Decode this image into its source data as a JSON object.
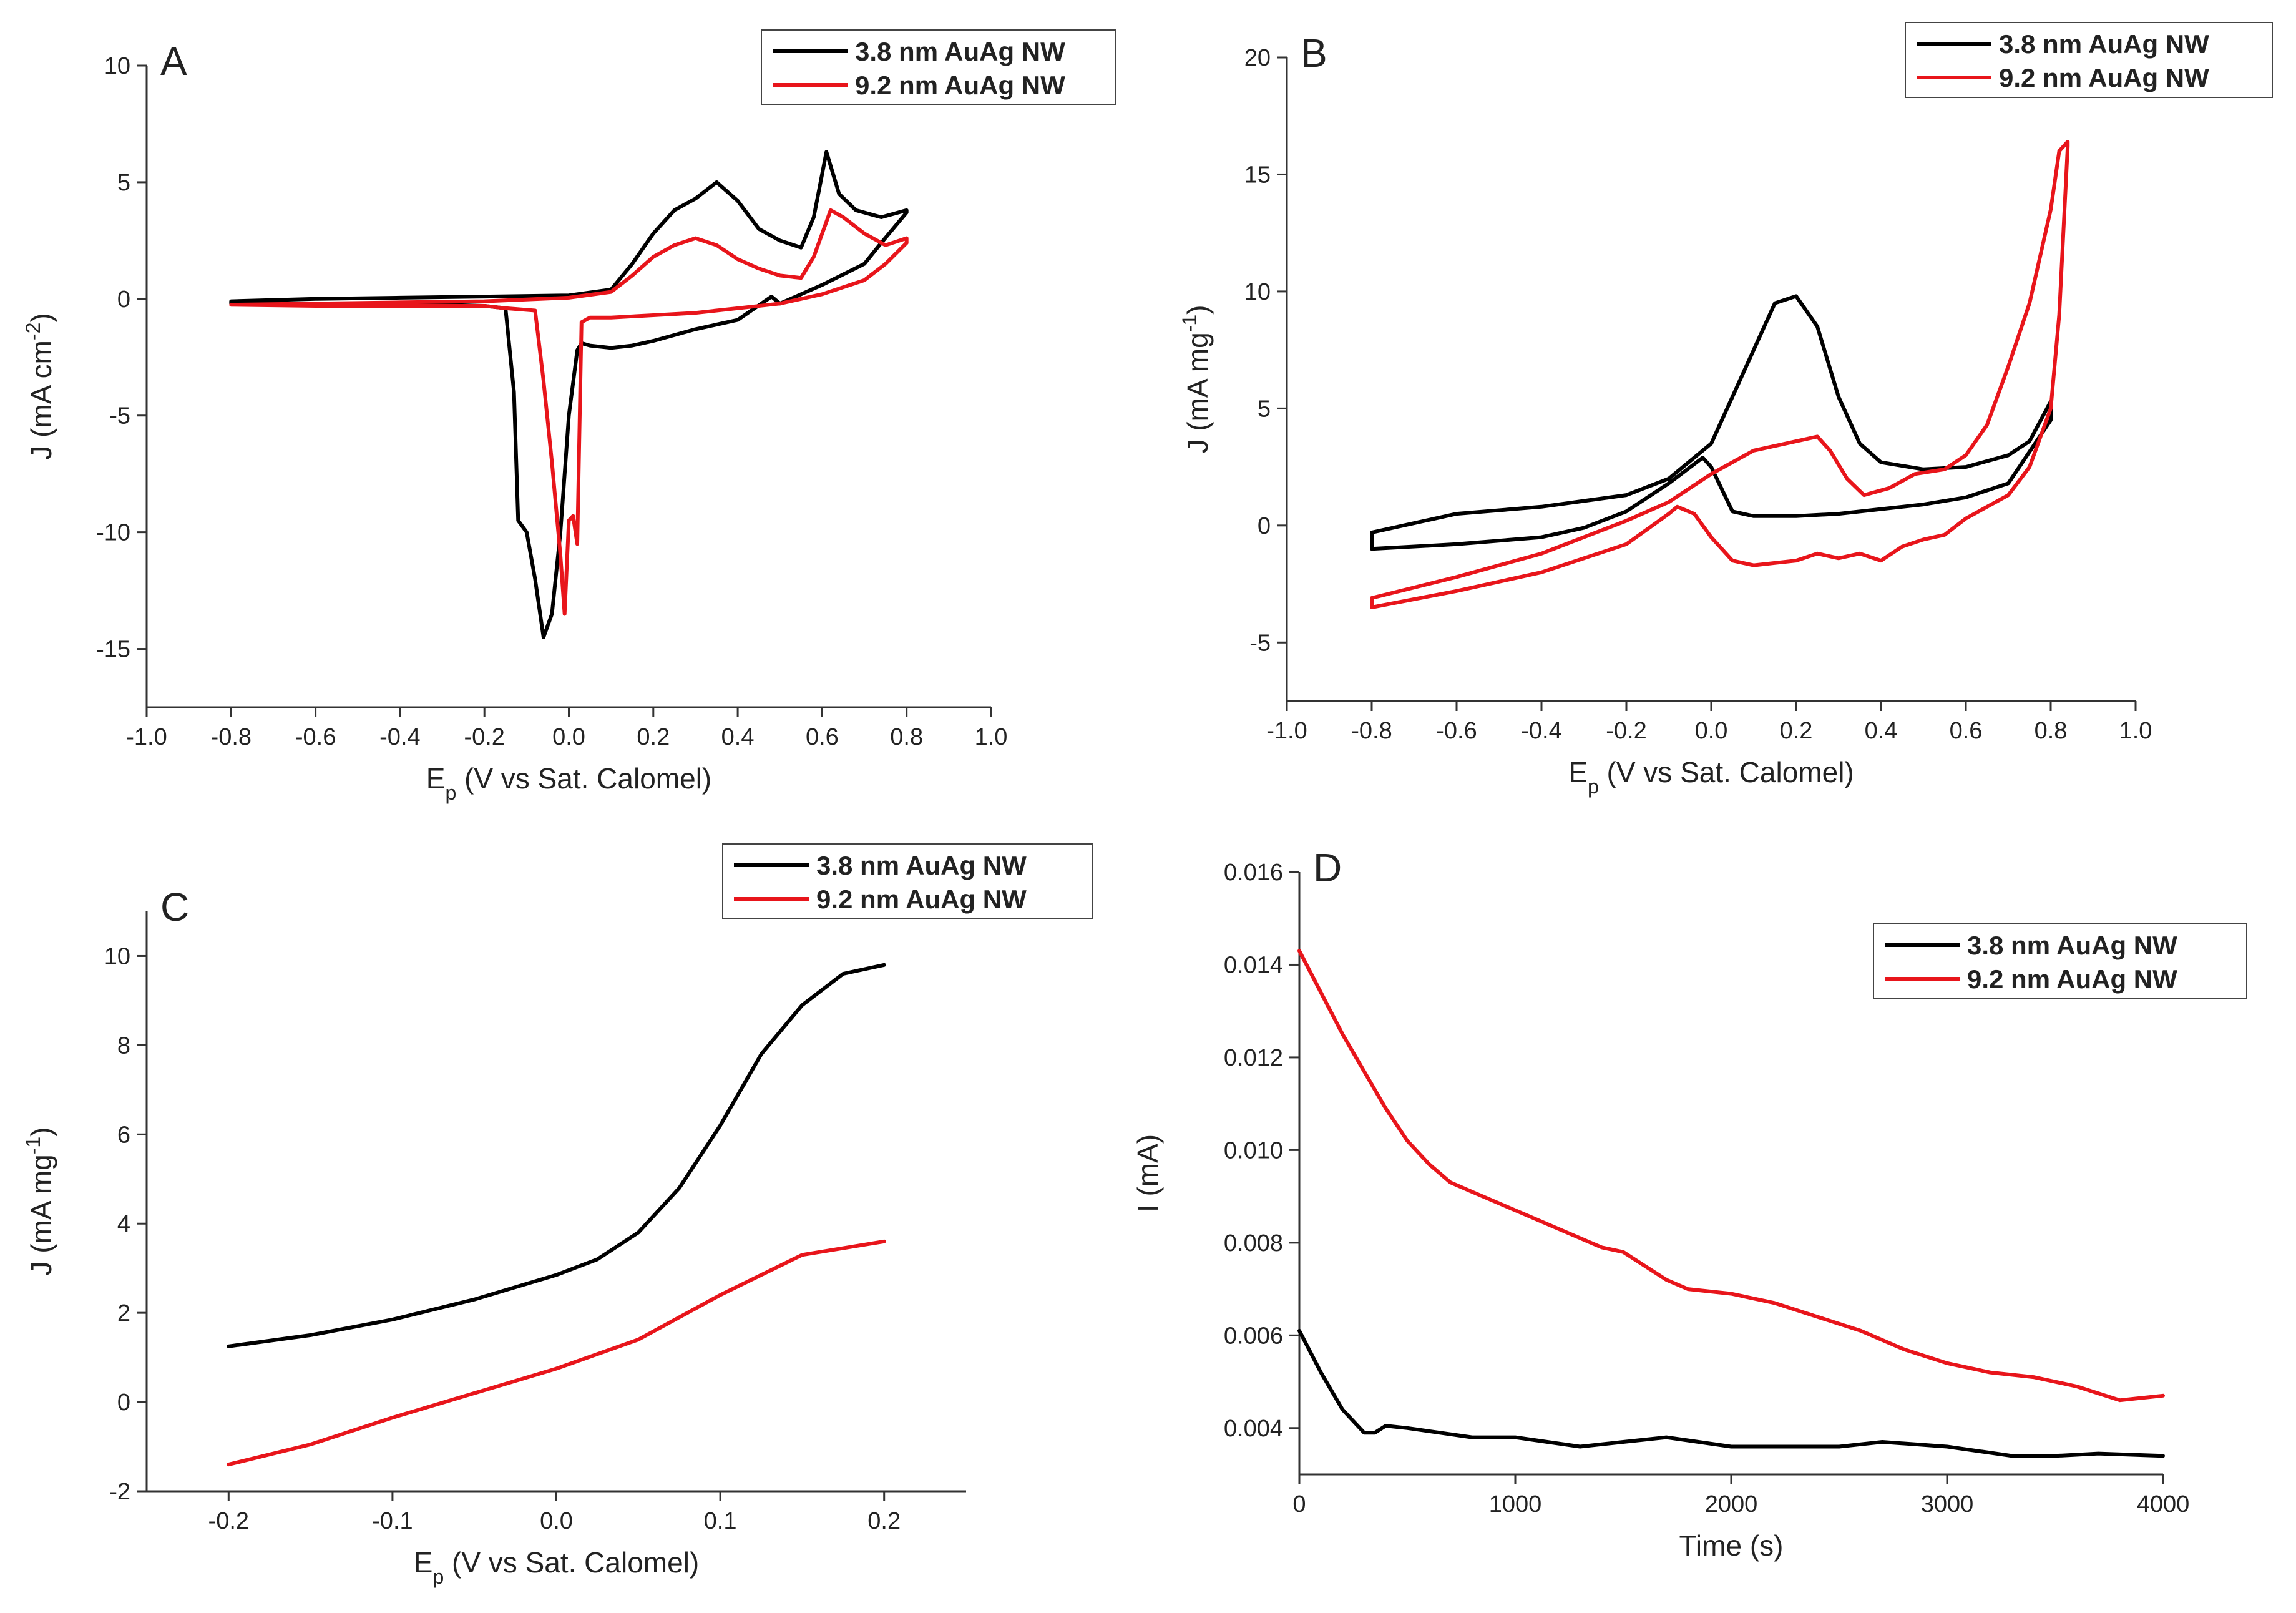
{
  "colors": {
    "series_a": "#000000",
    "series_b": "#e8151b",
    "axis": "#333333",
    "legend_border": "#444444"
  },
  "chart_data": [
    {
      "panel": "A",
      "type": "line",
      "xlabel": {
        "main": "E",
        "sub": "p",
        "rest": " (V vs Sat. Calomel)"
      },
      "ylabel": {
        "main": "J (mA cm",
        "sup": "-2",
        "rest": ")"
      },
      "xlim": [
        -1.0,
        1.0
      ],
      "ylim": [
        -17.5,
        10
      ],
      "xticks": [
        -1.0,
        -0.8,
        -0.6,
        -0.4,
        -0.2,
        0.0,
        0.2,
        0.4,
        0.6,
        0.8,
        1.0
      ],
      "xtick_labels": [
        "-1.0",
        "-0.8",
        "-0.6",
        "-0.4",
        "-0.2",
        "0.0",
        "0.2",
        "0.4",
        "0.6",
        "0.8",
        "1.0"
      ],
      "yticks": [
        -15,
        -10,
        -5,
        0,
        5,
        10
      ],
      "ytick_labels": [
        "-15",
        "-10",
        "-5",
        "0",
        "5",
        "10"
      ],
      "legend": [
        "3.8 nm AuAg NW",
        "9.2 nm AuAg NW"
      ],
      "legend_position": "top-right",
      "series": [
        {
          "name": "3.8 nm AuAg NW",
          "x": [
            -0.8,
            -0.6,
            -0.4,
            -0.2,
            0.0,
            0.1,
            0.15,
            0.2,
            0.25,
            0.3,
            0.35,
            0.4,
            0.45,
            0.5,
            0.55,
            0.58,
            0.61,
            0.64,
            0.68,
            0.74,
            0.8,
            0.8,
            0.74,
            0.7,
            0.6,
            0.5,
            0.48,
            0.4,
            0.3,
            0.2,
            0.15,
            0.1,
            0.05,
            0.03,
            0.02,
            0.0,
            -0.02,
            -0.04,
            -0.06,
            -0.08,
            -0.1,
            -0.12,
            -0.13,
            -0.15,
            -0.2,
            -0.4,
            -0.6,
            -0.8,
            -0.8
          ],
          "y": [
            -0.1,
            0.0,
            0.05,
            0.1,
            0.15,
            0.4,
            1.5,
            2.8,
            3.8,
            4.3,
            5.0,
            4.2,
            3.0,
            2.5,
            2.2,
            3.5,
            6.3,
            4.5,
            3.8,
            3.5,
            3.8,
            3.7,
            2.4,
            1.5,
            0.6,
            -0.2,
            0.1,
            -0.9,
            -1.3,
            -1.8,
            -2.0,
            -2.1,
            -2.0,
            -1.9,
            -2.2,
            -5.0,
            -10.0,
            -13.5,
            -14.5,
            -12.0,
            -10.0,
            -9.5,
            -4.0,
            -0.4,
            -0.3,
            -0.2,
            -0.2,
            -0.2,
            -0.1
          ]
        },
        {
          "name": "9.2 nm AuAg NW",
          "x": [
            -0.8,
            -0.6,
            -0.4,
            -0.2,
            0.0,
            0.1,
            0.15,
            0.2,
            0.25,
            0.3,
            0.35,
            0.4,
            0.45,
            0.5,
            0.55,
            0.58,
            0.62,
            0.65,
            0.7,
            0.75,
            0.8,
            0.8,
            0.75,
            0.7,
            0.6,
            0.5,
            0.4,
            0.3,
            0.2,
            0.1,
            0.05,
            0.03,
            0.02,
            0.01,
            0.0,
            -0.01,
            -0.02,
            -0.04,
            -0.06,
            -0.08,
            -0.15,
            -0.2,
            -0.4,
            -0.6,
            -0.8,
            -0.8
          ],
          "y": [
            -0.25,
            -0.2,
            -0.15,
            -0.1,
            0.05,
            0.3,
            1.0,
            1.8,
            2.3,
            2.6,
            2.3,
            1.7,
            1.3,
            1.0,
            0.9,
            1.8,
            3.8,
            3.5,
            2.8,
            2.3,
            2.6,
            2.4,
            1.5,
            0.8,
            0.2,
            -0.2,
            -0.4,
            -0.6,
            -0.7,
            -0.8,
            -0.8,
            -1.0,
            -10.5,
            -9.3,
            -9.5,
            -13.5,
            -11.0,
            -7.0,
            -3.5,
            -0.5,
            -0.4,
            -0.3,
            -0.3,
            -0.3,
            -0.25,
            -0.25
          ]
        }
      ]
    },
    {
      "panel": "B",
      "type": "line",
      "xlabel": {
        "main": "E",
        "sub": "p",
        "rest": " (V vs Sat. Calomel)"
      },
      "ylabel": {
        "main": "J (mA mg",
        "sup": "-1",
        "rest": ")"
      },
      "xlim": [
        -1.0,
        1.0
      ],
      "ylim": [
        -7.5,
        20
      ],
      "xticks": [
        -1.0,
        -0.8,
        -0.6,
        -0.4,
        -0.2,
        0.0,
        0.2,
        0.4,
        0.6,
        0.8,
        1.0
      ],
      "xtick_labels": [
        "-1.0",
        "-0.8",
        "-0.6",
        "-0.4",
        "-0.2",
        "0.0",
        "0.2",
        "0.4",
        "0.6",
        "0.8",
        "1.0"
      ],
      "yticks": [
        -5,
        0,
        5,
        10,
        15,
        20
      ],
      "ytick_labels": [
        "-5",
        "0",
        "5",
        "10",
        "15",
        "20"
      ],
      "legend": [
        "3.8 nm AuAg NW",
        "9.2 nm AuAg NW"
      ],
      "legend_position": "top-right",
      "series": [
        {
          "name": "3.8 nm AuAg NW",
          "x": [
            -0.8,
            -0.6,
            -0.4,
            -0.2,
            -0.1,
            0.0,
            0.05,
            0.1,
            0.15,
            0.2,
            0.25,
            0.3,
            0.35,
            0.4,
            0.5,
            0.6,
            0.7,
            0.75,
            0.8,
            0.8,
            0.7,
            0.6,
            0.5,
            0.4,
            0.3,
            0.2,
            0.1,
            0.05,
            0.0,
            -0.02,
            -0.1,
            -0.2,
            -0.3,
            -0.4,
            -0.6,
            -0.8,
            -0.8
          ],
          "y": [
            -0.3,
            0.5,
            0.8,
            1.3,
            2.0,
            3.5,
            5.5,
            7.5,
            9.5,
            9.8,
            8.5,
            5.5,
            3.5,
            2.7,
            2.4,
            2.5,
            3.0,
            3.6,
            5.3,
            4.5,
            1.8,
            1.2,
            0.9,
            0.7,
            0.5,
            0.4,
            0.4,
            0.6,
            2.5,
            2.9,
            1.8,
            0.6,
            -0.1,
            -0.5,
            -0.8,
            -1.0,
            -0.3
          ]
        },
        {
          "name": "9.2 nm AuAg NW",
          "x": [
            -0.8,
            -0.6,
            -0.4,
            -0.2,
            -0.1,
            0.0,
            0.1,
            0.2,
            0.25,
            0.28,
            0.32,
            0.36,
            0.42,
            0.48,
            0.55,
            0.6,
            0.65,
            0.7,
            0.75,
            0.8,
            0.82,
            0.84,
            0.84,
            0.82,
            0.8,
            0.75,
            0.7,
            0.6,
            0.55,
            0.5,
            0.45,
            0.4,
            0.35,
            0.3,
            0.25,
            0.2,
            0.15,
            0.1,
            0.05,
            0.0,
            -0.04,
            -0.08,
            -0.1,
            -0.2,
            -0.4,
            -0.6,
            -0.8,
            -0.8
          ],
          "y": [
            -3.1,
            -2.2,
            -1.2,
            0.2,
            1.0,
            2.2,
            3.2,
            3.6,
            3.8,
            3.2,
            2.0,
            1.3,
            1.6,
            2.2,
            2.4,
            3.0,
            4.3,
            6.8,
            9.5,
            13.5,
            16.0,
            16.4,
            16.2,
            9.0,
            5.0,
            2.5,
            1.3,
            0.3,
            -0.4,
            -0.6,
            -0.9,
            -1.5,
            -1.2,
            -1.4,
            -1.2,
            -1.5,
            -1.6,
            -1.7,
            -1.5,
            -0.5,
            0.5,
            0.8,
            0.5,
            -0.8,
            -2.0,
            -2.8,
            -3.5,
            -3.1
          ]
        }
      ]
    },
    {
      "panel": "C",
      "type": "line",
      "xlabel": {
        "main": "E",
        "sub": "p",
        "rest": " (V vs Sat. Calomel)"
      },
      "ylabel": {
        "main": "J (mA mg",
        "sup": "-1",
        "rest": ")"
      },
      "xlim": [
        -0.25,
        0.25
      ],
      "ylim": [
        -2,
        11
      ],
      "xticks": [
        -0.2,
        -0.1,
        0.0,
        0.1,
        0.2
      ],
      "xtick_labels": [
        "-0.2",
        "-0.1",
        "0.0",
        "0.1",
        "0.2"
      ],
      "yticks": [
        -2,
        0,
        2,
        4,
        6,
        8,
        10
      ],
      "ytick_labels": [
        "-2",
        "0",
        "2",
        "4",
        "6",
        "8",
        "10"
      ],
      "legend": [
        "3.8 nm AuAg NW",
        "9.2 nm AuAg NW"
      ],
      "legend_position": "top-right",
      "series": [
        {
          "name": "3.8 nm AuAg NW",
          "x": [
            -0.2,
            -0.15,
            -0.1,
            -0.05,
            0.0,
            0.025,
            0.05,
            0.075,
            0.1,
            0.125,
            0.15,
            0.175,
            0.2
          ],
          "y": [
            1.25,
            1.5,
            1.85,
            2.3,
            2.85,
            3.2,
            3.8,
            4.8,
            6.2,
            7.8,
            8.9,
            9.6,
            9.8
          ]
        },
        {
          "name": "9.2 nm AuAg NW",
          "x": [
            -0.2,
            -0.15,
            -0.1,
            -0.05,
            0.0,
            0.05,
            0.1,
            0.15,
            0.2
          ],
          "y": [
            -1.4,
            -0.95,
            -0.35,
            0.2,
            0.75,
            1.4,
            2.4,
            3.3,
            3.6
          ]
        }
      ]
    },
    {
      "panel": "D",
      "type": "line",
      "xlabel": {
        "main": "Time (s)",
        "sub": "",
        "rest": ""
      },
      "ylabel": {
        "main": "I (mA)",
        "sup": "",
        "rest": ""
      },
      "xlim": [
        0,
        4000
      ],
      "ylim": [
        0.003,
        0.016
      ],
      "xticks": [
        0,
        1000,
        2000,
        3000,
        4000
      ],
      "xtick_labels": [
        "0",
        "1000",
        "2000",
        "3000",
        "4000"
      ],
      "yticks": [
        0.004,
        0.006,
        0.008,
        0.01,
        0.012,
        0.014,
        0.016
      ],
      "ytick_labels": [
        "0.004",
        "0.006",
        "0.008",
        "0.010",
        "0.012",
        "0.014",
        "0.016"
      ],
      "legend": [
        "3.8 nm AuAg NW",
        "9.2 nm AuAg NW"
      ],
      "legend_position": "top-right",
      "series": [
        {
          "name": "3.8 nm AuAg NW",
          "x": [
            0,
            100,
            200,
            300,
            350,
            400,
            500,
            800,
            1000,
            1300,
            1500,
            1700,
            2000,
            2300,
            2500,
            2700,
            3000,
            3300,
            3500,
            3700,
            4000
          ],
          "y": [
            0.0061,
            0.0052,
            0.0044,
            0.0039,
            0.0039,
            0.00405,
            0.004,
            0.0038,
            0.0038,
            0.0036,
            0.0037,
            0.0038,
            0.0036,
            0.0036,
            0.0036,
            0.0037,
            0.0036,
            0.0034,
            0.0034,
            0.00345,
            0.0034
          ]
        },
        {
          "name": "9.2 nm AuAg NW",
          "x": [
            0,
            100,
            200,
            300,
            400,
            500,
            600,
            700,
            800,
            1000,
            1200,
            1400,
            1500,
            1600,
            1700,
            1800,
            2000,
            2200,
            2400,
            2600,
            2800,
            3000,
            3200,
            3400,
            3600,
            3800,
            4000
          ],
          "y": [
            0.0143,
            0.0134,
            0.0125,
            0.0117,
            0.0109,
            0.0102,
            0.0097,
            0.0093,
            0.0091,
            0.0087,
            0.0083,
            0.0079,
            0.0078,
            0.0075,
            0.0072,
            0.007,
            0.0069,
            0.0067,
            0.0064,
            0.0061,
            0.0057,
            0.0054,
            0.0052,
            0.0051,
            0.0049,
            0.0046,
            0.0047
          ]
        }
      ]
    }
  ]
}
